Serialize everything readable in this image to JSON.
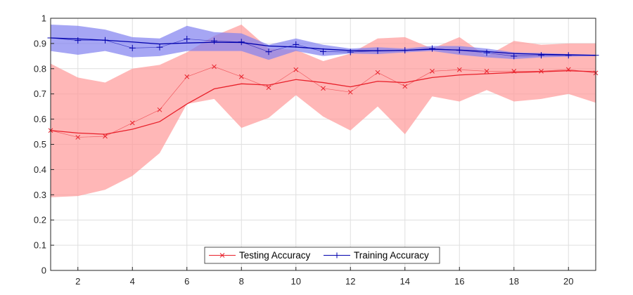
{
  "chart_data": {
    "type": "line",
    "title": "",
    "xlabel": "",
    "ylabel": "",
    "xlim": [
      1,
      21
    ],
    "ylim": [
      0,
      1
    ],
    "x": [
      1,
      2,
      3,
      4,
      5,
      6,
      7,
      8,
      9,
      10,
      11,
      12,
      13,
      14,
      15,
      16,
      17,
      18,
      19,
      20,
      21
    ],
    "xticks": [
      2,
      4,
      6,
      8,
      10,
      12,
      14,
      16,
      18,
      20
    ],
    "yticks": [
      0,
      0.1,
      0.2,
      0.3,
      0.4,
      0.5,
      0.6,
      0.7,
      0.8,
      0.9,
      1
    ],
    "grid": true,
    "legend": {
      "placement": "bottom-center",
      "orientation": "horizontal"
    },
    "series": [
      {
        "name": "Testing Accuracy",
        "color": "#e8202a",
        "marker": "x",
        "values": [
          0.555,
          0.528,
          0.532,
          0.585,
          0.637,
          0.768,
          0.808,
          0.768,
          0.725,
          0.796,
          0.722,
          0.707,
          0.785,
          0.73,
          0.79,
          0.796,
          0.79,
          0.79,
          0.79,
          0.797,
          0.783
        ],
        "trend": [
          0.555,
          0.545,
          0.54,
          0.56,
          0.59,
          0.66,
          0.72,
          0.74,
          0.735,
          0.757,
          0.745,
          0.728,
          0.75,
          0.745,
          0.765,
          0.775,
          0.78,
          0.785,
          0.788,
          0.792,
          0.788
        ],
        "band_upper": [
          0.82,
          0.765,
          0.745,
          0.8,
          0.815,
          0.865,
          0.93,
          0.975,
          0.88,
          0.875,
          0.83,
          0.86,
          0.92,
          0.925,
          0.88,
          0.925,
          0.85,
          0.91,
          0.895,
          0.9,
          0.9
        ],
        "band_lower": [
          0.29,
          0.295,
          0.32,
          0.375,
          0.465,
          0.66,
          0.68,
          0.565,
          0.605,
          0.695,
          0.61,
          0.555,
          0.65,
          0.54,
          0.69,
          0.67,
          0.715,
          0.67,
          0.68,
          0.7,
          0.665
        ],
        "band_color": "#ff9999"
      },
      {
        "name": "Training Accuracy",
        "color": "#0000ad",
        "marker": "+",
        "values": [
          0.922,
          0.912,
          0.913,
          0.882,
          0.885,
          0.918,
          0.91,
          0.906,
          0.867,
          0.896,
          0.868,
          0.866,
          0.871,
          0.873,
          0.88,
          0.873,
          0.863,
          0.85,
          0.853,
          0.853,
          0.853
        ],
        "trend": [
          0.922,
          0.918,
          0.913,
          0.906,
          0.898,
          0.902,
          0.905,
          0.904,
          0.89,
          0.886,
          0.878,
          0.872,
          0.871,
          0.873,
          0.877,
          0.874,
          0.868,
          0.86,
          0.857,
          0.855,
          0.853
        ],
        "band_upper": [
          0.975,
          0.97,
          0.955,
          0.925,
          0.92,
          0.97,
          0.945,
          0.94,
          0.895,
          0.92,
          0.895,
          0.88,
          0.885,
          0.88,
          0.89,
          0.89,
          0.88,
          0.865,
          0.862,
          0.858,
          0.856
        ],
        "band_lower": [
          0.87,
          0.855,
          0.87,
          0.845,
          0.85,
          0.87,
          0.87,
          0.87,
          0.835,
          0.87,
          0.85,
          0.86,
          0.858,
          0.865,
          0.87,
          0.855,
          0.845,
          0.838,
          0.845,
          0.848,
          0.85
        ],
        "band_color": "#8080f0"
      }
    ]
  }
}
